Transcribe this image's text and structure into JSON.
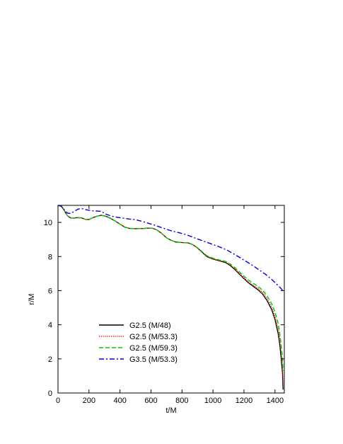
{
  "chart_data": {
    "type": "line",
    "title": "",
    "xlabel": "t/M",
    "ylabel": "r/M",
    "xlim": [
      0,
      1460
    ],
    "ylim": [
      0,
      11
    ],
    "xticks": [
      0,
      200,
      400,
      600,
      800,
      1000,
      1200,
      1400
    ],
    "yticks": [
      0,
      2,
      4,
      6,
      8,
      10
    ],
    "xtick_labels": [
      "0",
      "200",
      "400",
      "600",
      "800",
      "1000",
      "1200",
      "1400"
    ],
    "ytick_labels": [
      "0",
      "2",
      "4",
      "6",
      "8",
      "10"
    ],
    "grid": false,
    "legend_position": "lower-left",
    "series": [
      {
        "name": "G2.5 (M/48)",
        "color": "#000000",
        "dash": "solid",
        "x": [
          0,
          20,
          40,
          60,
          80,
          100,
          120,
          150,
          180,
          200,
          220,
          250,
          280,
          310,
          340,
          370,
          400,
          430,
          460,
          500,
          540,
          580,
          610,
          640,
          670,
          700,
          730,
          760,
          800,
          840,
          870,
          900,
          930,
          960,
          1000,
          1040,
          1080,
          1110,
          1140,
          1170,
          1200,
          1230,
          1260,
          1290,
          1320,
          1350,
          1380,
          1400,
          1420,
          1430,
          1440,
          1448,
          1452
        ],
        "y": [
          11.0,
          10.98,
          10.7,
          10.4,
          10.27,
          10.25,
          10.28,
          10.27,
          10.17,
          10.17,
          10.26,
          10.36,
          10.42,
          10.36,
          10.23,
          10.08,
          9.9,
          9.73,
          9.65,
          9.63,
          9.64,
          9.66,
          9.66,
          9.55,
          9.35,
          9.1,
          8.95,
          8.85,
          8.82,
          8.8,
          8.7,
          8.5,
          8.25,
          8.0,
          7.85,
          7.75,
          7.65,
          7.48,
          7.25,
          6.97,
          6.7,
          6.45,
          6.25,
          6.05,
          5.8,
          5.4,
          4.85,
          4.3,
          3.5,
          2.9,
          2.0,
          1.2,
          0.2
        ]
      },
      {
        "name": "G2.5 (M/53.3)",
        "color": "#ff0000",
        "dash": "dotted",
        "x": [
          0,
          20,
          40,
          60,
          80,
          100,
          120,
          150,
          180,
          200,
          220,
          250,
          280,
          310,
          340,
          370,
          400,
          430,
          460,
          500,
          540,
          580,
          610,
          640,
          670,
          700,
          730,
          760,
          800,
          840,
          870,
          900,
          930,
          960,
          1000,
          1040,
          1080,
          1110,
          1140,
          1170,
          1200,
          1230,
          1260,
          1290,
          1320,
          1350,
          1380,
          1400,
          1420,
          1430,
          1440,
          1448,
          1452
        ],
        "y": [
          11.0,
          10.98,
          10.7,
          10.4,
          10.27,
          10.25,
          10.28,
          10.27,
          10.17,
          10.17,
          10.26,
          10.36,
          10.42,
          10.36,
          10.23,
          10.08,
          9.9,
          9.73,
          9.65,
          9.63,
          9.64,
          9.66,
          9.66,
          9.55,
          9.35,
          9.1,
          8.95,
          8.85,
          8.82,
          8.8,
          8.7,
          8.5,
          8.25,
          8.02,
          7.87,
          7.77,
          7.68,
          7.52,
          7.3,
          7.02,
          6.76,
          6.52,
          6.32,
          6.13,
          5.9,
          5.52,
          5.0,
          4.5,
          3.8,
          3.2,
          2.4,
          1.6,
          0.6
        ]
      },
      {
        "name": "G2.5 (M/59.3)",
        "color": "#00cc00",
        "dash": "dashed",
        "x": [
          0,
          20,
          40,
          60,
          80,
          100,
          120,
          150,
          180,
          200,
          220,
          250,
          280,
          310,
          340,
          370,
          400,
          430,
          460,
          500,
          540,
          580,
          610,
          640,
          670,
          700,
          730,
          760,
          800,
          840,
          870,
          900,
          930,
          960,
          1000,
          1040,
          1080,
          1110,
          1140,
          1170,
          1200,
          1230,
          1260,
          1290,
          1320,
          1350,
          1380,
          1400,
          1420,
          1430,
          1440,
          1448,
          1452
        ],
        "y": [
          11.0,
          10.98,
          10.7,
          10.4,
          10.27,
          10.25,
          10.28,
          10.27,
          10.17,
          10.17,
          10.26,
          10.36,
          10.42,
          10.36,
          10.23,
          10.08,
          9.9,
          9.73,
          9.65,
          9.63,
          9.64,
          9.66,
          9.66,
          9.55,
          9.35,
          9.1,
          8.95,
          8.85,
          8.82,
          8.8,
          8.7,
          8.52,
          8.28,
          8.05,
          7.9,
          7.8,
          7.72,
          7.57,
          7.36,
          7.1,
          6.85,
          6.62,
          6.43,
          6.25,
          6.03,
          5.68,
          5.2,
          4.75,
          4.1,
          3.55,
          2.8,
          2.1,
          1.3
        ]
      },
      {
        "name": "G3.5 (M/53.3)",
        "color": "#0000dd",
        "dash": "dashdot",
        "x": [
          0,
          20,
          40,
          60,
          80,
          100,
          130,
          150,
          180,
          220,
          260,
          280,
          300,
          340,
          380,
          420,
          460,
          500,
          540,
          580,
          620,
          660,
          700,
          740,
          780,
          820,
          860,
          900,
          940,
          980,
          1020,
          1060,
          1100,
          1140,
          1180,
          1220,
          1260,
          1300,
          1340,
          1380,
          1420,
          1452
        ],
        "y": [
          11.0,
          10.95,
          10.75,
          10.55,
          10.52,
          10.62,
          10.78,
          10.82,
          10.75,
          10.68,
          10.66,
          10.65,
          10.52,
          10.38,
          10.3,
          10.25,
          10.2,
          10.16,
          10.07,
          9.96,
          9.85,
          9.72,
          9.6,
          9.48,
          9.4,
          9.3,
          9.17,
          9.03,
          8.9,
          8.77,
          8.64,
          8.5,
          8.33,
          8.12,
          7.9,
          7.68,
          7.45,
          7.2,
          6.95,
          6.65,
          6.3,
          6.0
        ]
      }
    ]
  }
}
